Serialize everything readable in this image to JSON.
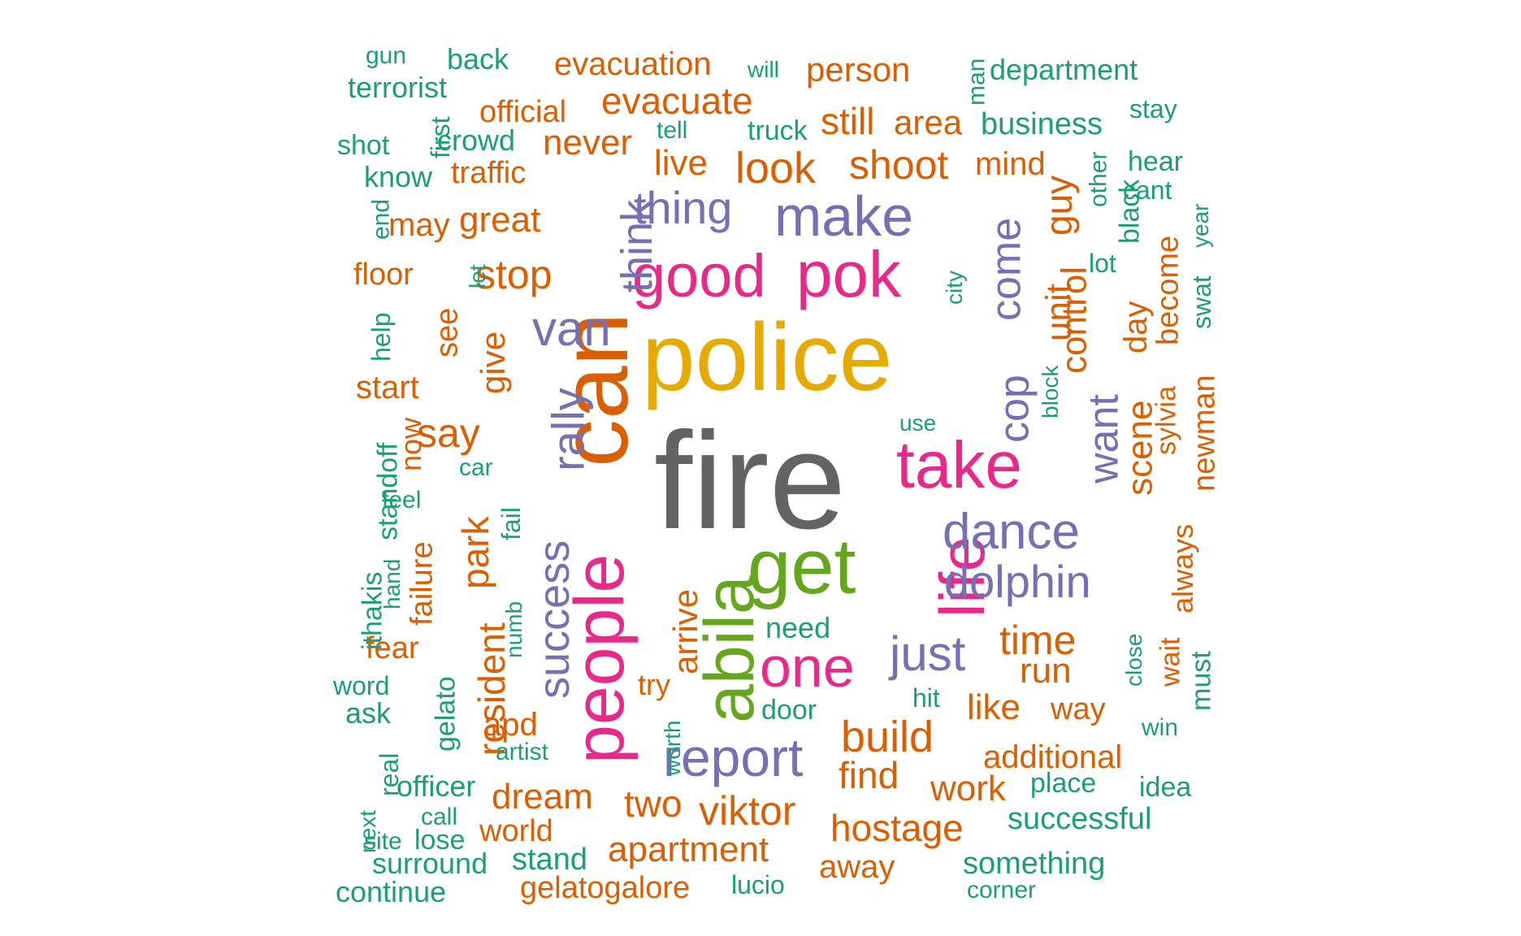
{
  "palette": {
    "gray": "#636363",
    "gold": "#E6AB02",
    "pink": "#E7298A",
    "green": "#66A61E",
    "purple": "#7570B3",
    "orange": "#D95F02",
    "teal": "#1B9E77"
  },
  "words": [
    {
      "text": "fire",
      "color": "gray"
    },
    {
      "text": "police",
      "color": "gold"
    },
    {
      "text": "can",
      "color": "orange"
    },
    {
      "text": "people",
      "color": "pink"
    },
    {
      "text": "abila",
      "color": "green"
    },
    {
      "text": "get",
      "color": "green"
    },
    {
      "text": "life",
      "color": "pink"
    },
    {
      "text": "take",
      "color": "pink"
    },
    {
      "text": "pok",
      "color": "pink"
    },
    {
      "text": "good",
      "color": "pink"
    },
    {
      "text": "make",
      "color": "purple"
    },
    {
      "text": "report",
      "color": "purple"
    },
    {
      "text": "one",
      "color": "pink"
    },
    {
      "text": "dance",
      "color": "purple"
    },
    {
      "text": "dolphin",
      "color": "purple"
    },
    {
      "text": "just",
      "color": "purple"
    },
    {
      "text": "van",
      "color": "purple"
    },
    {
      "text": "success",
      "color": "purple"
    },
    {
      "text": "rally",
      "color": "purple"
    },
    {
      "text": "think",
      "color": "purple"
    },
    {
      "text": "thing",
      "color": "purple"
    },
    {
      "text": "come",
      "color": "purple"
    },
    {
      "text": "cop",
      "color": "purple"
    },
    {
      "text": "want",
      "color": "purple"
    },
    {
      "text": "look",
      "color": "orange"
    },
    {
      "text": "shoot",
      "color": "orange"
    },
    {
      "text": "build",
      "color": "orange"
    },
    {
      "text": "viktor",
      "color": "orange"
    },
    {
      "text": "apartment",
      "color": "orange"
    },
    {
      "text": "time",
      "color": "orange"
    },
    {
      "text": "evacuate",
      "color": "orange"
    },
    {
      "text": "evacuation",
      "color": "orange"
    },
    {
      "text": "say",
      "color": "orange"
    },
    {
      "text": "stop",
      "color": "orange"
    },
    {
      "text": "park",
      "color": "orange"
    },
    {
      "text": "resident",
      "color": "orange"
    },
    {
      "text": "arrive",
      "color": "orange"
    },
    {
      "text": "hostage",
      "color": "orange"
    },
    {
      "text": "find",
      "color": "orange"
    },
    {
      "text": "dream",
      "color": "orange"
    },
    {
      "text": "two",
      "color": "orange"
    },
    {
      "text": "like",
      "color": "orange"
    },
    {
      "text": "work",
      "color": "orange"
    },
    {
      "text": "additional",
      "color": "orange"
    },
    {
      "text": "run",
      "color": "orange"
    },
    {
      "text": "scene",
      "color": "orange"
    },
    {
      "text": "control",
      "color": "orange"
    },
    {
      "text": "guy",
      "color": "orange"
    },
    {
      "text": "unit",
      "color": "orange"
    },
    {
      "text": "day",
      "color": "orange"
    },
    {
      "text": "still",
      "color": "orange"
    },
    {
      "text": "area",
      "color": "orange"
    },
    {
      "text": "person",
      "color": "orange"
    },
    {
      "text": "never",
      "color": "orange"
    },
    {
      "text": "live",
      "color": "orange"
    },
    {
      "text": "mind",
      "color": "orange"
    },
    {
      "text": "great",
      "color": "orange"
    },
    {
      "text": "give",
      "color": "orange"
    },
    {
      "text": "start",
      "color": "orange"
    },
    {
      "text": "official",
      "color": "orange"
    },
    {
      "text": "traffic",
      "color": "orange"
    },
    {
      "text": "may",
      "color": "orange"
    },
    {
      "text": "floor",
      "color": "orange"
    },
    {
      "text": "see",
      "color": "orange"
    },
    {
      "text": "now",
      "color": "orange"
    },
    {
      "text": "failure",
      "color": "orange"
    },
    {
      "text": "fear",
      "color": "orange"
    },
    {
      "text": "apd",
      "color": "orange"
    },
    {
      "text": "way",
      "color": "orange"
    },
    {
      "text": "away",
      "color": "orange"
    },
    {
      "text": "world",
      "color": "orange"
    },
    {
      "text": "gelatogalore",
      "color": "orange"
    },
    {
      "text": "try",
      "color": "orange"
    },
    {
      "text": "sylvia",
      "color": "orange"
    },
    {
      "text": "newman",
      "color": "orange"
    },
    {
      "text": "become",
      "color": "orange"
    },
    {
      "text": "always",
      "color": "orange"
    },
    {
      "text": "wait",
      "color": "orange"
    },
    {
      "text": "gun",
      "color": "teal"
    },
    {
      "text": "back",
      "color": "teal"
    },
    {
      "text": "will",
      "color": "teal"
    },
    {
      "text": "man",
      "color": "teal"
    },
    {
      "text": "department",
      "color": "teal"
    },
    {
      "text": "terrorist",
      "color": "teal"
    },
    {
      "text": "stay",
      "color": "teal"
    },
    {
      "text": "tell",
      "color": "teal"
    },
    {
      "text": "truck",
      "color": "teal"
    },
    {
      "text": "business",
      "color": "teal"
    },
    {
      "text": "shot",
      "color": "teal"
    },
    {
      "text": "first",
      "color": "teal"
    },
    {
      "text": "crowd",
      "color": "teal"
    },
    {
      "text": "know",
      "color": "teal"
    },
    {
      "text": "hear",
      "color": "teal"
    },
    {
      "text": "other",
      "color": "teal"
    },
    {
      "text": "black",
      "color": "teal"
    },
    {
      "text": "cant",
      "color": "teal"
    },
    {
      "text": "end",
      "color": "teal"
    },
    {
      "text": "year",
      "color": "teal"
    },
    {
      "text": "swat",
      "color": "teal"
    },
    {
      "text": "lot",
      "color": "teal"
    },
    {
      "text": "city",
      "color": "teal"
    },
    {
      "text": "let",
      "color": "teal"
    },
    {
      "text": "help",
      "color": "teal"
    },
    {
      "text": "block",
      "color": "teal"
    },
    {
      "text": "use",
      "color": "teal"
    },
    {
      "text": "standoff",
      "color": "teal"
    },
    {
      "text": "car",
      "color": "teal"
    },
    {
      "text": "feel",
      "color": "teal"
    },
    {
      "text": "fail",
      "color": "teal"
    },
    {
      "text": "hand",
      "color": "teal"
    },
    {
      "text": "ithakis",
      "color": "teal"
    },
    {
      "text": "numb",
      "color": "teal"
    },
    {
      "text": "need",
      "color": "teal"
    },
    {
      "text": "close",
      "color": "teal"
    },
    {
      "text": "must",
      "color": "teal"
    },
    {
      "text": "word",
      "color": "teal"
    },
    {
      "text": "gelato",
      "color": "teal"
    },
    {
      "text": "hit",
      "color": "teal"
    },
    {
      "text": "ask",
      "color": "teal"
    },
    {
      "text": "door",
      "color": "teal"
    },
    {
      "text": "win",
      "color": "teal"
    },
    {
      "text": "worth",
      "color": "teal"
    },
    {
      "text": "artist",
      "color": "teal"
    },
    {
      "text": "real",
      "color": "teal"
    },
    {
      "text": "officer",
      "color": "teal"
    },
    {
      "text": "place",
      "color": "teal"
    },
    {
      "text": "idea",
      "color": "teal"
    },
    {
      "text": "call",
      "color": "teal"
    },
    {
      "text": "next",
      "color": "teal"
    },
    {
      "text": "successful",
      "color": "teal"
    },
    {
      "text": "site",
      "color": "teal"
    },
    {
      "text": "lose",
      "color": "teal"
    },
    {
      "text": "surround",
      "color": "teal"
    },
    {
      "text": "stand",
      "color": "teal"
    },
    {
      "text": "something",
      "color": "teal"
    },
    {
      "text": "continue",
      "color": "teal"
    },
    {
      "text": "lucio",
      "color": "teal"
    },
    {
      "text": "corner",
      "color": "teal"
    }
  ]
}
